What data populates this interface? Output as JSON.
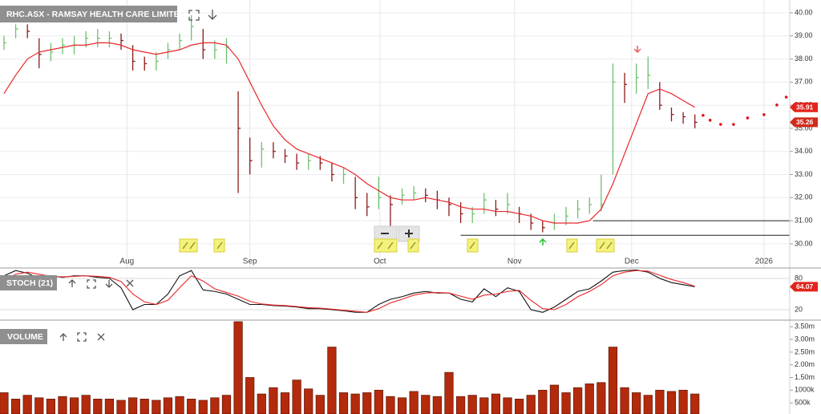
{
  "chart_data": [
    {
      "type": "ohlc",
      "title": "RHC.ASX - RAMSAY HEALTH CARE LIMITED",
      "x": [
        0,
        1,
        2,
        3,
        4,
        5,
        6,
        7,
        8,
        9,
        10,
        11,
        12,
        13,
        14,
        15,
        16,
        17,
        18,
        19,
        20,
        21,
        22,
        23,
        24,
        25,
        26,
        27,
        28,
        29,
        30,
        31,
        32,
        33,
        34,
        35,
        36,
        37,
        38,
        39,
        40,
        41,
        42,
        43,
        44,
        45,
        46,
        47,
        48,
        49,
        50,
        51,
        52,
        53,
        54,
        55,
        56,
        57,
        58,
        59
      ],
      "high": [
        39.0,
        39.5,
        39.5,
        38.9,
        38.7,
        38.9,
        39.0,
        39.2,
        39.3,
        39.2,
        39.1,
        38.6,
        38.1,
        38.3,
        38.7,
        39.1,
        39.9,
        39.3,
        38.8,
        38.9,
        36.6,
        34.6,
        34.4,
        34.4,
        34.1,
        33.9,
        33.9,
        33.8,
        33.5,
        33.3,
        32.9,
        32.2,
        32.9,
        32.1,
        32.4,
        32.5,
        32.4,
        32.3,
        32.0,
        31.8,
        31.6,
        32.2,
        31.9,
        32.2,
        31.6,
        31.3,
        31.0,
        31.3,
        31.6,
        31.9,
        32.0,
        33.0,
        37.8,
        37.4,
        37.8,
        38.1,
        37.0,
        35.9,
        35.7,
        35.6
      ],
      "low": [
        38.4,
        38.9,
        38.9,
        37.6,
        37.9,
        38.2,
        38.2,
        38.5,
        38.5,
        38.5,
        38.4,
        37.5,
        37.5,
        37.5,
        38.0,
        38.4,
        38.8,
        38.0,
        38.0,
        37.8,
        32.2,
        33.0,
        33.3,
        33.7,
        33.5,
        33.2,
        33.2,
        33.2,
        32.7,
        32.6,
        31.5,
        31.2,
        31.5,
        30.5,
        31.7,
        31.9,
        31.8,
        31.5,
        31.2,
        30.9,
        30.9,
        31.3,
        31.2,
        31.3,
        30.9,
        30.6,
        30.5,
        30.6,
        30.8,
        31.1,
        31.3,
        31.4,
        33.0,
        36.1,
        36.5,
        36.7,
        35.8,
        35.3,
        35.2,
        35.0
      ],
      "close": [
        38.7,
        39.3,
        39.2,
        38.2,
        38.3,
        38.6,
        38.6,
        38.9,
        38.9,
        38.9,
        38.8,
        37.9,
        37.8,
        37.9,
        38.4,
        38.8,
        39.4,
        38.4,
        38.4,
        38.5,
        35.0,
        33.6,
        34.1,
        34.0,
        33.8,
        33.5,
        33.6,
        33.5,
        33.0,
        33.0,
        32.0,
        31.6,
        32.0,
        31.7,
        32.1,
        32.2,
        32.1,
        31.9,
        31.7,
        31.3,
        31.3,
        31.9,
        31.5,
        31.7,
        31.3,
        30.9,
        30.7,
        30.9,
        31.2,
        31.5,
        31.7,
        31.7,
        37.0,
        36.9,
        37.2,
        37.3,
        36.0,
        35.6,
        35.5,
        35.26
      ],
      "up_color": "#6fbf6f",
      "down_color": "#8b1a1a",
      "moving_average": {
        "color": "#e8262a",
        "values": [
          36.5,
          37.3,
          38.0,
          38.3,
          38.4,
          38.5,
          38.6,
          38.6,
          38.7,
          38.7,
          38.6,
          38.4,
          38.3,
          38.2,
          38.3,
          38.4,
          38.6,
          38.7,
          38.7,
          38.6,
          38.0,
          37.0,
          36.0,
          35.1,
          34.5,
          34.1,
          33.9,
          33.7,
          33.5,
          33.3,
          33.0,
          32.6,
          32.3,
          32.0,
          31.9,
          31.9,
          32.0,
          31.9,
          31.8,
          31.6,
          31.5,
          31.5,
          31.4,
          31.4,
          31.3,
          31.2,
          31.0,
          30.9,
          30.9,
          30.9,
          31.0,
          31.5,
          32.6,
          33.9,
          35.2,
          36.5,
          36.7,
          36.5,
          36.2,
          35.91
        ]
      },
      "forecast": {
        "color": "#e0141e",
        "x": [
          59.7,
          60.3,
          61.2,
          62.3,
          63.5,
          64.9,
          66.0,
          66.8
        ],
        "values": [
          35.56,
          35.35,
          35.17,
          35.17,
          35.45,
          35.59,
          36.01,
          36.35
        ]
      },
      "levels": [
        {
          "value": 31.0,
          "x_start": 50.3
        },
        {
          "value": 30.37,
          "x_start": 39.0
        }
      ],
      "xlim": [
        -0.34,
        67.1
      ],
      "ylim": [
        29.51,
        40.38
      ],
      "xticks": [
        {
          "value": 10.5,
          "label": "Aug"
        },
        {
          "value": 21.0,
          "label": "Sep"
        },
        {
          "value": 32.1,
          "label": "Oct"
        },
        {
          "value": 43.6,
          "label": "Nov"
        },
        {
          "value": 53.6,
          "label": "Dec"
        },
        {
          "value": 64.9,
          "label": "2026"
        }
      ],
      "yticks": [
        {
          "value": 30,
          "label": "30.00"
        },
        {
          "value": 31,
          "label": "31.00"
        },
        {
          "value": 32,
          "label": "32.00"
        },
        {
          "value": 33,
          "label": "33.00"
        },
        {
          "value": 34,
          "label": "34.00"
        },
        {
          "value": 35,
          "label": "35.00"
        },
        {
          "value": 36,
          "label": "36.00"
        },
        {
          "value": 37,
          "label": "37.00"
        },
        {
          "value": 38,
          "label": "38.00"
        },
        {
          "value": 39,
          "label": "39.00"
        },
        {
          "value": 40,
          "label": "40.00"
        }
      ],
      "grid": true
    },
    {
      "type": "line",
      "title": "STOCH (21)",
      "x": [
        0,
        1,
        2,
        3,
        4,
        5,
        6,
        7,
        8,
        9,
        10,
        11,
        12,
        13,
        14,
        15,
        16,
        17,
        18,
        19,
        20,
        21,
        22,
        23,
        24,
        25,
        26,
        27,
        28,
        29,
        30,
        31,
        32,
        33,
        34,
        35,
        36,
        37,
        38,
        39,
        40,
        41,
        42,
        43,
        44,
        45,
        46,
        47,
        48,
        49,
        50,
        51,
        52,
        53,
        54,
        55,
        56,
        57,
        58,
        59
      ],
      "series": [
        {
          "color": "#111111",
          "values": [
            85,
            95,
            90,
            80,
            85,
            82,
            85,
            85,
            82,
            80,
            62,
            20,
            30,
            30,
            50,
            85,
            95,
            58,
            55,
            50,
            40,
            30,
            30,
            28,
            27,
            25,
            22,
            22,
            20,
            18,
            15,
            15,
            30,
            40,
            45,
            52,
            55,
            52,
            52,
            40,
            35,
            60,
            45,
            62,
            55,
            20,
            15,
            25,
            40,
            55,
            60,
            75,
            92,
            95,
            96,
            92,
            80,
            72,
            68,
            64.07
          ]
        },
        {
          "color": "#e8262a",
          "values": [
            75,
            88,
            92,
            88,
            84,
            83,
            84,
            85,
            84,
            82,
            74,
            50,
            35,
            30,
            38,
            62,
            85,
            75,
            60,
            53,
            46,
            36,
            31,
            29,
            28,
            26,
            24,
            23,
            21,
            19,
            17,
            15,
            22,
            33,
            40,
            48,
            52,
            53,
            52,
            46,
            40,
            48,
            50,
            55,
            57,
            38,
            22,
            20,
            30,
            45,
            55,
            68,
            85,
            92,
            95,
            94,
            86,
            78,
            72,
            65
          ]
        }
      ],
      "xlim": [
        -0.34,
        67.1
      ],
      "ylim": [
        0,
        100
      ],
      "yticks": [
        80,
        20
      ]
    },
    {
      "type": "bar",
      "title": "VOLUME",
      "x": [
        0,
        1,
        2,
        3,
        4,
        5,
        6,
        7,
        8,
        9,
        10,
        11,
        12,
        13,
        14,
        15,
        16,
        17,
        18,
        19,
        20,
        21,
        22,
        23,
        24,
        25,
        26,
        27,
        28,
        29,
        30,
        31,
        32,
        33,
        34,
        35,
        36,
        37,
        38,
        39,
        40,
        41,
        42,
        43,
        44,
        45,
        46,
        47,
        48,
        49,
        50,
        51,
        52,
        53,
        54,
        55,
        56,
        57,
        58,
        59
      ],
      "values": [
        900000,
        650000,
        800000,
        700000,
        650000,
        750000,
        700000,
        800000,
        650000,
        650000,
        600000,
        700000,
        650000,
        600000,
        700000,
        750000,
        650000,
        600000,
        700000,
        800000,
        3700000,
        1500000,
        850000,
        1100000,
        900000,
        1400000,
        1050000,
        800000,
        2700000,
        900000,
        850000,
        900000,
        1000000,
        750000,
        700000,
        950000,
        800000,
        750000,
        1700000,
        750000,
        800000,
        700000,
        850000,
        700000,
        650000,
        800000,
        1000000,
        1200000,
        900000,
        1100000,
        1250000,
        1300000,
        2700000,
        1100000,
        900000,
        800000,
        1000000,
        950000,
        1000000,
        850000
      ],
      "color": "#b42a0c",
      "xlim": [
        -0.34,
        67.1
      ],
      "ylim": [
        60000,
        3730000
      ],
      "yticks": [
        {
          "value": 500000,
          "label": "500k"
        },
        {
          "value": 1000000,
          "label": "1000k"
        },
        {
          "value": 1500000,
          "label": "1.50m"
        },
        {
          "value": 2000000,
          "label": "2.00m"
        },
        {
          "value": 2500000,
          "label": "2.50m"
        },
        {
          "value": 3000000,
          "label": "3.00m"
        },
        {
          "value": 3500000,
          "label": "3.50m"
        }
      ]
    }
  ]
}
